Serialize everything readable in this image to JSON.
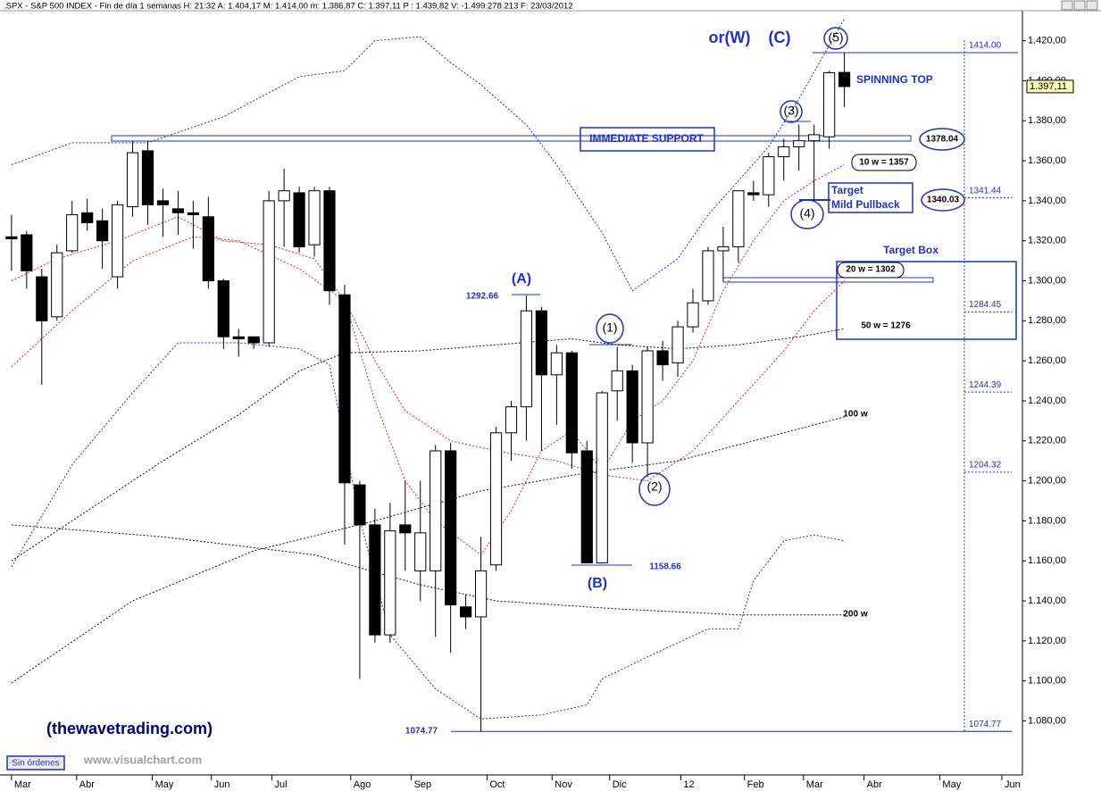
{
  "chart_data": {
    "type": "candlestick",
    "header": ".SPX - S&P 500 INDEX - Fin de día 1 semanas  H: 21:32  A: 1.404,17  M: 1.414,00  m: 1.386,87  C: 1.397,11  P : 1.439,82  V: -1.499.278.213  F: 23/03/2012",
    "price_tag": "1.397,11",
    "up_color": "#ffffff",
    "down_color": "#000000",
    "open": [
      1322,
      1323,
      1302,
      1282,
      1315,
      1334,
      1330,
      1302,
      1337,
      1365,
      1340,
      1336,
      1334,
      1332,
      1300,
      1272,
      1272,
      1269,
      1340,
      1344,
      1318,
      1345,
      1293,
      1198,
      1178,
      1123,
      1178,
      1155,
      1155,
      1215,
      1137,
      1132,
      1158,
      1224,
      1237,
      1285,
      1253,
      1264,
      1215,
      1159,
      1245,
      1255,
      1219,
      1265,
      1259,
      1277,
      1290,
      1315,
      1317,
      1344,
      1343,
      1362,
      1367,
      1370,
      1372,
      1404.17
    ],
    "high": [
      1333,
      1325,
      1306,
      1318,
      1340,
      1341,
      1336,
      1340,
      1370,
      1370,
      1346,
      1345,
      1340,
      1342,
      1301,
      1276,
      1272,
      1345,
      1356,
      1347,
      1347,
      1347,
      1298,
      1200,
      1186,
      1189,
      1200,
      1200,
      1218,
      1219,
      1143,
      1172,
      1227,
      1240,
      1292.66,
      1287,
      1268,
      1265,
      1220,
      1245,
      1267,
      1258,
      1267,
      1270,
      1280,
      1296,
      1317,
      1327,
      1345,
      1350,
      1364,
      1371,
      1378,
      1378,
      1405,
      1414
    ],
    "low": [
      1305,
      1296,
      1248,
      1280,
      1314,
      1325,
      1306,
      1296,
      1332,
      1328,
      1322,
      1323,
      1316,
      1296,
      1266,
      1262,
      1266,
      1267,
      1317,
      1314,
      1312,
      1288,
      1168,
      1101,
      1119,
      1119,
      1155,
      1140,
      1122,
      1114,
      1126,
      1074.77,
      1155,
      1210,
      1220,
      1215,
      1228,
      1206,
      1158.66,
      1158.66,
      1230,
      1209,
      1202,
      1250,
      1252,
      1274,
      1288,
      1300,
      1309,
      1340,
      1337,
      1350,
      1355,
      1340,
      1366,
      1386.87
    ],
    "close": [
      1321,
      1305,
      1280,
      1314,
      1333,
      1329,
      1320,
      1338,
      1364,
      1338,
      1338,
      1334,
      1333,
      1300,
      1272,
      1271,
      1269,
      1340,
      1345,
      1317,
      1345,
      1295,
      1199,
      1178,
      1123,
      1175,
      1174,
      1174,
      1215,
      1138,
      1132,
      1155,
      1224,
      1237,
      1285,
      1253,
      1264,
      1214,
      1159,
      1244,
      1255,
      1219,
      1265,
      1258,
      1277,
      1289,
      1315,
      1317,
      1345,
      1343,
      1362,
      1367,
      1370,
      1373,
      1404,
      1397.11
    ],
    "overlays": [
      {
        "color": "#1f2fd0",
        "x": [
          0,
          4,
          9,
          14,
          19,
          22,
          24,
          27,
          29,
          31,
          34,
          36,
          39,
          41,
          44,
          46,
          50,
          52,
          55
        ],
        "values": [
          1358,
          1369,
          1369,
          1382,
          1402,
          1405,
          1420,
          1422,
          1409,
          1398,
          1378,
          1358,
          1324,
          1295,
          1311,
          1333,
          1367,
          1391,
          1431
        ]
      },
      {
        "color": "#1f2fd0",
        "x": [
          0,
          4,
          8,
          11,
          15,
          19,
          21,
          23,
          25,
          28,
          31,
          35,
          38,
          39,
          42,
          44,
          46,
          48,
          49,
          51,
          53,
          55
        ],
        "values": [
          1157,
          1208,
          1244,
          1269,
          1269,
          1266,
          1258,
          1181,
          1123,
          1096,
          1081,
          1083,
          1088,
          1101,
          1112,
          1119,
          1126,
          1126,
          1150,
          1170,
          1173,
          1170
        ]
      },
      {
        "color": "#e0261e",
        "x": [
          0,
          3,
          7,
          11,
          14,
          17,
          20,
          22,
          24,
          26,
          28,
          31,
          33,
          35,
          37,
          39,
          41,
          43,
          45,
          47,
          49,
          51,
          53,
          55
        ],
        "values": [
          1300,
          1311,
          1320,
          1332,
          1320,
          1318,
          1311,
          1290,
          1240,
          1200,
          1180,
          1163,
          1185,
          1215,
          1225,
          1205,
          1230,
          1240,
          1260,
          1295,
          1320,
          1340,
          1350,
          1358
        ]
      },
      {
        "color": "#e0261e",
        "x": [
          0,
          4,
          8,
          12,
          15,
          19,
          22,
          24,
          26,
          29,
          32,
          36,
          39,
          42,
          45,
          48,
          51,
          53,
          55
        ],
        "values": [
          1257,
          1285,
          1310,
          1322,
          1320,
          1306,
          1290,
          1260,
          1235,
          1220,
          1215,
          1210,
          1203,
          1200,
          1215,
          1240,
          1265,
          1285,
          1300
        ]
      },
      {
        "color": "#111111",
        "x": [
          0,
          5,
          10,
          15,
          19,
          22,
          27,
          32,
          37,
          40,
          44,
          48,
          52,
          55
        ],
        "values": [
          1160,
          1185,
          1210,
          1233,
          1255,
          1264,
          1265,
          1268,
          1271,
          1268,
          1266,
          1268,
          1272,
          1276
        ]
      },
      {
        "color": "#111111",
        "x": [
          0,
          8,
          16,
          24,
          31,
          38,
          44,
          50,
          55
        ],
        "values": [
          1099,
          1140,
          1165,
          1180,
          1195,
          1204,
          1210,
          1222,
          1232
        ]
      },
      {
        "color": "#111111",
        "x": [
          0,
          10,
          20,
          27,
          32,
          40,
          48,
          55
        ],
        "values": [
          1178,
          1172,
          1163,
          1148,
          1140,
          1136,
          1133,
          1133
        ]
      }
    ],
    "levels": [
      {
        "value": 1414,
        "label": "1414.00"
      },
      {
        "value": 1341.44,
        "label": "1341.44"
      },
      {
        "value": 1284.45,
        "label": "1284.45"
      },
      {
        "value": 1244.39,
        "label": "1244.39"
      },
      {
        "value": 1204.32,
        "label": "1204.32"
      },
      {
        "value": 1074.77,
        "label": "1074.77"
      }
    ],
    "annotations": [
      "or(W)",
      "(C)",
      "(5)",
      "SPINNING TOP",
      "(3)",
      "IMMEDIATE SUPPORT",
      "1378.04",
      "10 w = 1357",
      "Target",
      "Mild Pullback",
      "1340.03",
      "(4)",
      "Target Box",
      "20 w = 1302",
      "50 w = 1276",
      "(A)",
      "1292.66",
      "(1)",
      "(2)",
      "(B)",
      "1158.66",
      "100 w",
      "200 w",
      "1074.77",
      "(thewavetrading.com)",
      "www.visualchart.com",
      "Sin órdenes"
    ],
    "xlim": [
      -0.7,
      66.7
    ],
    "xticks": [
      {
        "value": 0,
        "label": "Mar"
      },
      {
        "value": 4.3,
        "label": "Abr"
      },
      {
        "value": 9.3,
        "label": "May"
      },
      {
        "value": 13.2,
        "label": "Jun"
      },
      {
        "value": 17.2,
        "label": "Jul"
      },
      {
        "value": 22.4,
        "label": "Ago"
      },
      {
        "value": 26.4,
        "label": "Sep"
      },
      {
        "value": 31.4,
        "label": "Oct"
      },
      {
        "value": 35.7,
        "label": "Nov"
      },
      {
        "value": 39.5,
        "label": "Dic"
      },
      {
        "value": 44.2,
        "label": "12"
      },
      {
        "value": 48.4,
        "label": "Feb"
      },
      {
        "value": 52.3,
        "label": "Mar"
      },
      {
        "value": 56.3,
        "label": "Abr"
      },
      {
        "value": 61.3,
        "label": "May"
      },
      {
        "value": 65.4,
        "label": "Jun"
      }
    ],
    "ylim": [
      1053,
      1435
    ],
    "yticks": [
      {
        "value": 1080,
        "label": "1.080,00"
      },
      {
        "value": 1100,
        "label": "1.100,00"
      },
      {
        "value": 1120,
        "label": "1.120,00"
      },
      {
        "value": 1140,
        "label": "1.140,00"
      },
      {
        "value": 1160,
        "label": "1.160,00"
      },
      {
        "value": 1180,
        "label": "1.180,00"
      },
      {
        "value": 1200,
        "label": "1.200,00"
      },
      {
        "value": 1220,
        "label": "1.220,00"
      },
      {
        "value": 1240,
        "label": "1.240,00"
      },
      {
        "value": 1260,
        "label": "1.260,00"
      },
      {
        "value": 1280,
        "label": "1.280,00"
      },
      {
        "value": 1300,
        "label": "1.300,00"
      },
      {
        "value": 1320,
        "label": "1.320,00"
      },
      {
        "value": 1340,
        "label": "1.340,00"
      },
      {
        "value": 1360,
        "label": "1.360,00"
      },
      {
        "value": 1380,
        "label": "1.380,00"
      },
      {
        "value": 1400,
        "label": "1.400,00"
      },
      {
        "value": 1420,
        "label": "1.420,00"
      }
    ]
  }
}
